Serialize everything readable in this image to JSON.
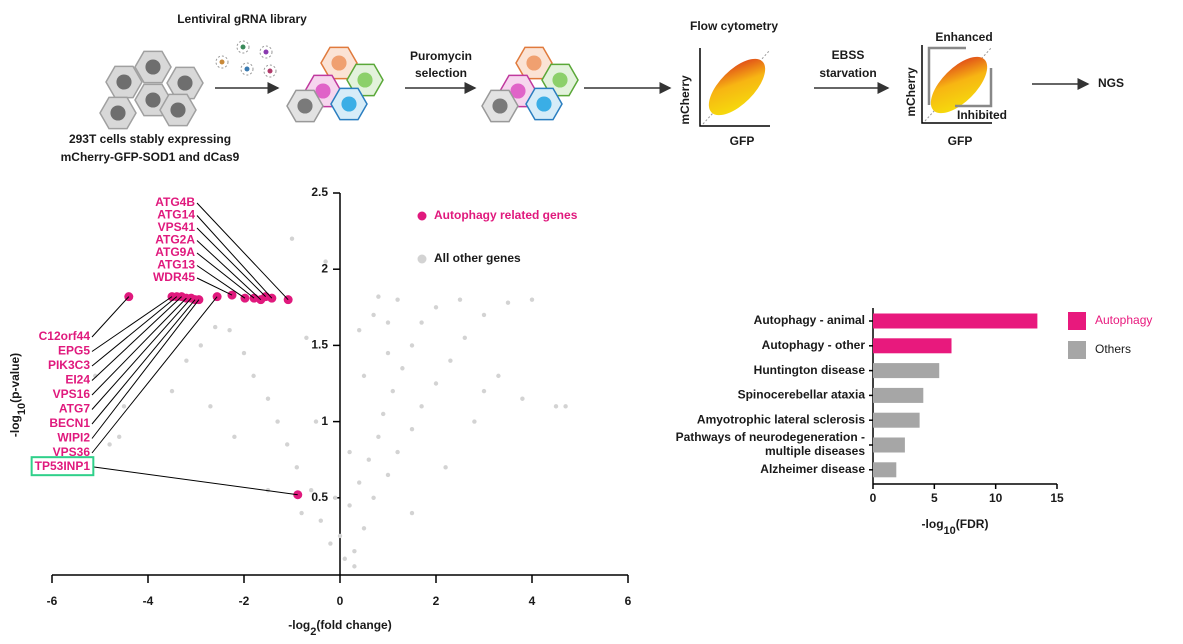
{
  "schematic": {
    "library": "Lentiviral gRNA library",
    "cells": [
      "293T cells stably expressing",
      "mCherry-GFP-SOD1 and dCas9"
    ],
    "selection": [
      "Puromycin",
      "selection"
    ],
    "flow": "Flow cytometry",
    "flow_y": "mCherry",
    "flow_x": "GFP",
    "starvation": [
      "EBSS",
      "starvation"
    ],
    "enhanced": "Enhanced",
    "inhibited": "Inhibited",
    "sort_y": "mCherry",
    "sort_x": "GFP",
    "ngs": "NGS"
  },
  "chart_data": [
    {
      "type": "scatter",
      "xlabel": [
        "-log",
        "2",
        "(fold change)"
      ],
      "ylabel": [
        "-log",
        "10",
        "(p-value)"
      ],
      "xlim": [
        -6,
        6
      ],
      "xticks": [
        -6,
        -4,
        -2,
        0,
        2,
        4,
        6
      ],
      "ylim": [
        0,
        2.5
      ],
      "yticks": [
        0.5,
        1,
        1.5,
        2,
        2.5
      ],
      "series": [
        {
          "name": "Autophagy related genes",
          "color": "#e0197d",
          "labels": [
            "C12orf44",
            "EPG5",
            "PIK3C3",
            "EI24",
            "VPS16",
            "ATG7",
            "BECN1",
            "WIPI2",
            "VPS36",
            "WDR45",
            "ATG13",
            "ATG9A",
            "ATG2A",
            "VPS41",
            "ATG14",
            "ATG4B",
            "TP53INP1"
          ],
          "x": [
            -4.4,
            -3.5,
            -3.4,
            -3.3,
            -3.2,
            -3.1,
            -3.02,
            -2.94,
            -2.56,
            -2.25,
            -1.98,
            -1.79,
            -1.65,
            -1.55,
            -1.42,
            -1.08,
            -0.88
          ],
          "values": [
            1.82,
            1.82,
            1.82,
            1.82,
            1.81,
            1.81,
            1.8,
            1.8,
            1.82,
            1.83,
            1.81,
            1.81,
            1.8,
            1.82,
            1.81,
            1.8,
            0.52
          ]
        },
        {
          "name": "All other genes",
          "color": "#d3d3d3",
          "x": [
            0.1,
            -0.2,
            0.3,
            0.5,
            -0.4,
            0.2,
            0.7,
            -0.6,
            0.4,
            1.0,
            -0.9,
            0.6,
            1.2,
            -1.1,
            0.8,
            1.5,
            -1.3,
            0.9,
            1.7,
            -1.5,
            1.1,
            2.0,
            -1.8,
            1.3,
            2.3,
            -2.0,
            1.5,
            2.6,
            -2.3,
            1.7,
            3.0,
            -2.6,
            2.0,
            3.5,
            1.2,
            0.8,
            2.5,
            4.0,
            -2.9,
            -3.5,
            -4.5,
            -5.1,
            -4.8,
            -4.6,
            4.5,
            4.7,
            3.8,
            3.0,
            -1.0,
            -0.3,
            1.0,
            0.5,
            -0.5,
            0.2,
            -0.1,
            0.3,
            0.0,
            -0.8,
            1.5,
            -1.5,
            2.2,
            -2.2,
            2.8,
            -2.7,
            3.3,
            -3.2,
            1.0,
            -0.7,
            0.4,
            0.7
          ],
          "values": [
            0.1,
            0.2,
            0.15,
            0.3,
            0.35,
            0.45,
            0.5,
            0.55,
            0.6,
            0.65,
            0.7,
            0.75,
            0.8,
            0.85,
            0.9,
            0.95,
            1.0,
            1.05,
            1.1,
            1.15,
            1.2,
            1.25,
            1.3,
            1.35,
            1.4,
            1.45,
            1.5,
            1.55,
            1.6,
            1.65,
            1.7,
            1.62,
            1.75,
            1.78,
            1.8,
            1.82,
            1.8,
            1.8,
            1.5,
            1.2,
            1.1,
            1.3,
            0.85,
            0.9,
            1.1,
            1.1,
            1.15,
            1.2,
            2.2,
            2.05,
            1.65,
            1.3,
            1.0,
            0.8,
            0.5,
            0.05,
            0.25,
            0.4,
            0.4,
            0.55,
            0.7,
            0.9,
            1.0,
            1.1,
            1.3,
            1.4,
            1.45,
            1.55,
            1.6,
            1.7
          ]
        }
      ]
    },
    {
      "type": "bar",
      "orientation": "horizontal",
      "categories": [
        "Autophagy - animal",
        "Autophagy - other",
        "Huntington disease",
        "Spinocerebellar ataxia",
        "Amyotrophic lateral sclerosis",
        [
          "Pathways of neurodegeneration -",
          "multiple diseases"
        ],
        "Alzheimer disease"
      ],
      "xlabel": [
        "-log",
        "10",
        "(FDR)"
      ],
      "xlim": [
        0,
        15
      ],
      "xticks": [
        0,
        5,
        10,
        15
      ],
      "series": [
        {
          "name": "Autophagy",
          "color": "#e8197d",
          "values": [
            13.4,
            6.4,
            null,
            null,
            null,
            null,
            null
          ]
        },
        {
          "name": "Others",
          "color": "#a6a6a6",
          "values": [
            null,
            null,
            5.4,
            4.1,
            3.8,
            2.6,
            1.9
          ]
        }
      ]
    }
  ]
}
